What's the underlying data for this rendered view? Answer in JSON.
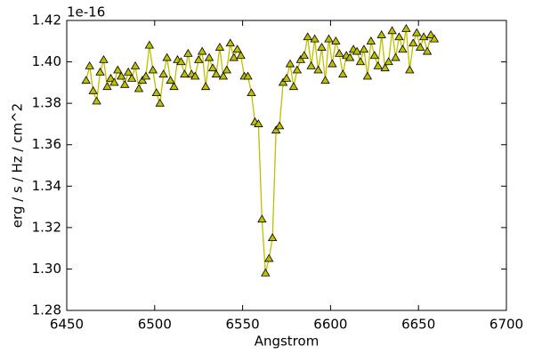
{
  "chart_data": {
    "type": "line",
    "x_label": "Angstrom",
    "y_label": "erg / s / Hz / cm^2",
    "y_offset_text": "1e-16",
    "xlim": [
      6450,
      6700
    ],
    "xticks": [
      6450,
      6500,
      6550,
      6600,
      6650,
      6700
    ],
    "ylim": [
      1.28,
      1.42
    ],
    "yticks": [
      1.28,
      {
        "value": 1.3,
        "label": "1.30"
      },
      1.32,
      1.34,
      1.36,
      1.38,
      {
        "value": 1.4,
        "label": "1.40"
      },
      1.42
    ],
    "x": [
      6461,
      6463,
      6465,
      6467,
      6469,
      6471,
      6473,
      6475,
      6477,
      6479,
      6481,
      6483,
      6485,
      6487,
      6489,
      6491,
      6493,
      6495,
      6497,
      6499,
      6501,
      6503,
      6505,
      6507,
      6509,
      6511,
      6513,
      6515,
      6517,
      6519,
      6521,
      6523,
      6525,
      6527,
      6529,
      6531,
      6533,
      6535,
      6537,
      6539,
      6541,
      6543,
      6545,
      6547,
      6549,
      6551,
      6553,
      6555,
      6557,
      6559,
      6561,
      6563,
      6565,
      6567,
      6569,
      6571,
      6573,
      6575,
      6577,
      6579,
      6581,
      6583,
      6585,
      6587,
      6589,
      6591,
      6593,
      6595,
      6597,
      6599,
      6601,
      6603,
      6605,
      6607,
      6609,
      6611,
      6613,
      6615,
      6617,
      6619,
      6621,
      6623,
      6625,
      6627,
      6629,
      6631,
      6633,
      6635,
      6637,
      6639,
      6641,
      6643,
      6645,
      6647,
      6649,
      6651,
      6653,
      6655,
      6657,
      6659
    ],
    "series": [
      {
        "color": "#bfbf00",
        "marker_edge": "#000000",
        "values": [
          1.391,
          1.398,
          1.386,
          1.381,
          1.395,
          1.401,
          1.388,
          1.392,
          1.39,
          1.396,
          1.393,
          1.389,
          1.395,
          1.392,
          1.398,
          1.387,
          1.391,
          1.393,
          1.408,
          1.396,
          1.385,
          1.38,
          1.394,
          1.402,
          1.391,
          1.388,
          1.401,
          1.4,
          1.394,
          1.404,
          1.394,
          1.393,
          1.401,
          1.405,
          1.388,
          1.402,
          1.397,
          1.394,
          1.407,
          1.393,
          1.396,
          1.409,
          1.402,
          1.406,
          1.403,
          1.393,
          1.393,
          1.385,
          1.371,
          1.37,
          1.324,
          1.298,
          1.305,
          1.315,
          1.367,
          1.369,
          1.39,
          1.392,
          1.399,
          1.388,
          1.396,
          1.401,
          1.403,
          1.412,
          1.398,
          1.411,
          1.396,
          1.407,
          1.391,
          1.411,
          1.399,
          1.41,
          1.404,
          1.394,
          1.403,
          1.402,
          1.406,
          1.405,
          1.4,
          1.406,
          1.393,
          1.41,
          1.403,
          1.398,
          1.413,
          1.397,
          1.4,
          1.415,
          1.402,
          1.412,
          1.406,
          1.416,
          1.396,
          1.409,
          1.414,
          1.407,
          1.412,
          1.405,
          1.413,
          1.411
        ]
      }
    ]
  }
}
